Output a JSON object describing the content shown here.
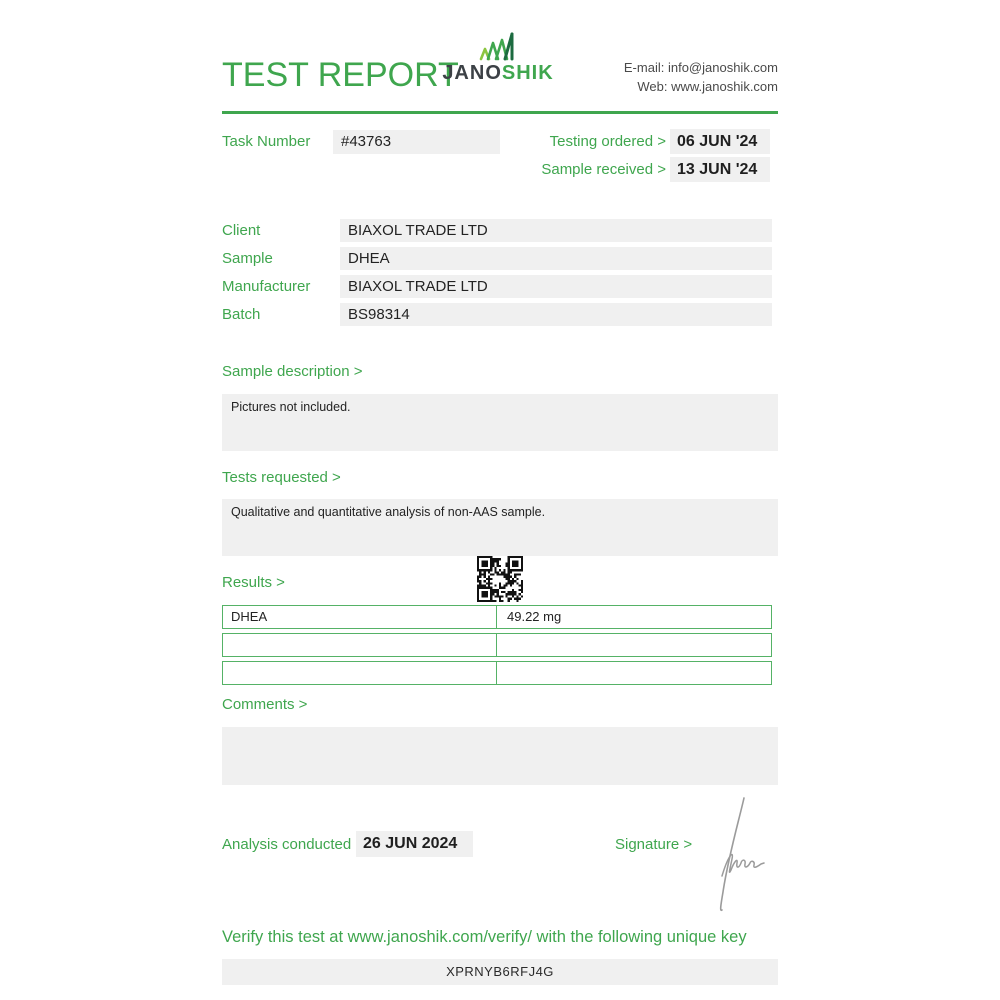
{
  "header": {
    "title": "TEST REPORT",
    "logo_jano": "JANO",
    "logo_shik": "SHIK",
    "email_label": "E-mail:",
    "email": "info@janoshik.com",
    "web_label": "Web:",
    "web": "www.janoshik.com"
  },
  "task": {
    "label": "Task Number",
    "number": "#43763",
    "testing_ordered_label": "Testing ordered  >",
    "testing_ordered": "06 JUN '24",
    "sample_received_label": "Sample received >",
    "sample_received": "13 JUN '24"
  },
  "info_rows": [
    {
      "label": "Client",
      "value": "BIAXOL TRADE LTD"
    },
    {
      "label": "Sample",
      "value": "DHEA"
    },
    {
      "label": "Manufacturer",
      "value": "BIAXOL TRADE LTD"
    },
    {
      "label": "Batch",
      "value": "BS98314"
    }
  ],
  "sample_description": {
    "label": "Sample description >",
    "text": "Pictures not included."
  },
  "tests_requested": {
    "label": "Tests requested >",
    "text": "Qualitative and quantitative analysis of non-AAS sample."
  },
  "results": {
    "label": "Results >",
    "rows": [
      [
        "DHEA",
        "49.22 mg"
      ],
      [
        "",
        ""
      ],
      [
        "",
        ""
      ]
    ]
  },
  "comments": {
    "label": "Comments >",
    "text": ""
  },
  "analysis": {
    "label": "Analysis conducted >",
    "date": "26 JUN 2024"
  },
  "signature": {
    "label": "Signature >"
  },
  "footer": {
    "verify_text": "Verify this test at www.janoshik.com/verify/ with the following unique key",
    "unique_key": "XPRNYB6RFJ4G"
  },
  "colors": {
    "brand_green": "#3fa64e",
    "table_border_green": "#55b266",
    "logo_dark": "#3c4146",
    "box_gray": "#f0f0f0",
    "text_dark": "#232323"
  }
}
